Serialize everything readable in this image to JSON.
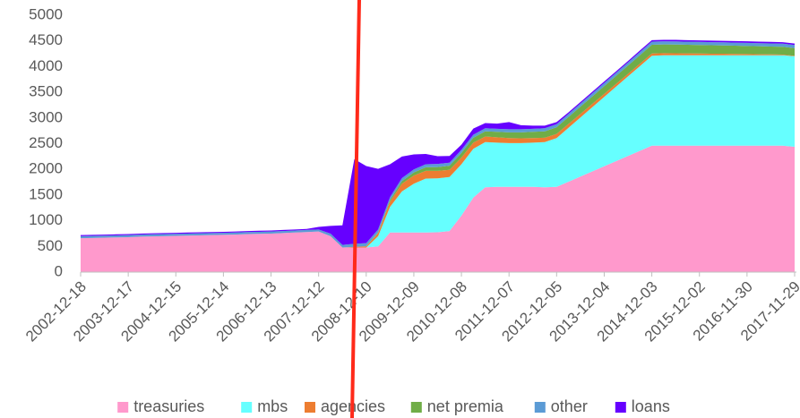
{
  "chart_data": {
    "type": "stacked_area",
    "categories": [
      "2002-12-18",
      null,
      null,
      null,
      "2003-12-17",
      null,
      null,
      null,
      "2004-12-15",
      null,
      null,
      null,
      "2005-12-14",
      null,
      null,
      null,
      "2006-12-13",
      null,
      null,
      null,
      "2007-12-12",
      null,
      null,
      null,
      "2008-12-10",
      null,
      null,
      null,
      "2009-12-09",
      null,
      null,
      null,
      "2010-12-08",
      null,
      null,
      null,
      "2011-12-07",
      null,
      null,
      null,
      "2012-12-05",
      null,
      null,
      null,
      "2013-12-04",
      null,
      null,
      null,
      "2014-12-03",
      null,
      null,
      null,
      "2015-12-02",
      null,
      null,
      null,
      "2016-11-30",
      null,
      null,
      null,
      "2017-11-29"
    ],
    "series": [
      {
        "name": "treasuries",
        "color": "#ff99cc",
        "values": [
          660,
          665,
          670,
          675,
          680,
          690,
          695,
          700,
          705,
          710,
          715,
          720,
          725,
          730,
          740,
          745,
          750,
          760,
          770,
          780,
          790,
          700,
          480,
          480,
          480,
          500,
          770,
          770,
          770,
          770,
          775,
          800,
          1100,
          1450,
          1650,
          1660,
          1660,
          1660,
          1660,
          1650,
          1660,
          1760,
          1860,
          1960,
          2060,
          2160,
          2260,
          2360,
          2460,
          2460,
          2460,
          2460,
          2460,
          2460,
          2460,
          2460,
          2460,
          2460,
          2460,
          2460,
          2440
        ]
      },
      {
        "name": "mbs",
        "color": "#66ffff",
        "values": [
          0,
          0,
          0,
          0,
          0,
          0,
          0,
          0,
          0,
          0,
          0,
          0,
          0,
          0,
          0,
          0,
          0,
          0,
          0,
          0,
          0,
          0,
          0,
          0,
          0,
          200,
          500,
          800,
          950,
          1050,
          1050,
          1050,
          1000,
          950,
          880,
          860,
          850,
          850,
          860,
          880,
          950,
          1050,
          1150,
          1250,
          1350,
          1450,
          1550,
          1650,
          1750,
          1760,
          1760,
          1760,
          1760,
          1760,
          1760,
          1760,
          1760,
          1760,
          1760,
          1760,
          1760
        ]
      },
      {
        "name": "agencies",
        "color": "#ed7d31",
        "values": [
          0,
          0,
          0,
          0,
          0,
          0,
          0,
          0,
          0,
          0,
          0,
          0,
          0,
          0,
          0,
          0,
          0,
          0,
          0,
          0,
          0,
          0,
          0,
          10,
          20,
          60,
          100,
          150,
          160,
          150,
          145,
          140,
          130,
          120,
          110,
          105,
          100,
          95,
          90,
          85,
          80,
          75,
          70,
          65,
          60,
          55,
          50,
          48,
          45,
          42,
          40,
          37,
          35,
          32,
          30,
          27,
          24,
          20,
          17,
          14,
          10
        ]
      },
      {
        "name": "net premia",
        "color": "#70ad47",
        "values": [
          0,
          0,
          0,
          0,
          0,
          0,
          0,
          0,
          0,
          0,
          0,
          0,
          0,
          0,
          0,
          0,
          0,
          0,
          0,
          0,
          0,
          0,
          0,
          0,
          5,
          10,
          30,
          50,
          60,
          70,
          75,
          80,
          90,
          95,
          100,
          105,
          110,
          115,
          120,
          125,
          130,
          135,
          140,
          145,
          150,
          155,
          160,
          165,
          170,
          170,
          170,
          168,
          166,
          164,
          162,
          160,
          158,
          156,
          154,
          152,
          150
        ]
      },
      {
        "name": "other",
        "color": "#5b9bd5",
        "values": [
          40,
          40,
          40,
          40,
          40,
          40,
          40,
          40,
          40,
          40,
          40,
          40,
          40,
          40,
          40,
          40,
          40,
          40,
          40,
          40,
          40,
          50,
          50,
          60,
          60,
          60,
          60,
          60,
          60,
          60,
          60,
          60,
          60,
          60,
          60,
          60,
          60,
          60,
          60,
          60,
          60,
          60,
          60,
          60,
          60,
          60,
          60,
          60,
          60,
          60,
          60,
          60,
          60,
          60,
          60,
          60,
          60,
          60,
          60,
          60,
          60
        ]
      },
      {
        "name": "loans",
        "color": "#6600ff",
        "values": [
          20,
          20,
          20,
          20,
          20,
          20,
          20,
          20,
          20,
          20,
          20,
          20,
          20,
          20,
          20,
          20,
          20,
          20,
          20,
          20,
          50,
          150,
          380,
          1650,
          1500,
          1180,
          640,
          420,
          290,
          200,
          150,
          130,
          100,
          120,
          100,
          100,
          140,
          80,
          60,
          50,
          40,
          30,
          30,
          30,
          30,
          30,
          30,
          30,
          30,
          30,
          30,
          30,
          30,
          30,
          30,
          30,
          30,
          30,
          30,
          30,
          30
        ]
      }
    ],
    "ylim": [
      0,
      5000
    ],
    "yticks": [
      0,
      500,
      1000,
      1500,
      2000,
      2500,
      3000,
      3500,
      4000,
      4500,
      5000
    ],
    "grid": false,
    "legend": "bottom"
  }
}
